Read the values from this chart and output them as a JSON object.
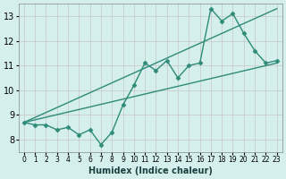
{
  "x": [
    0,
    1,
    2,
    3,
    4,
    5,
    6,
    7,
    8,
    9,
    10,
    11,
    12,
    13,
    14,
    15,
    16,
    17,
    18,
    19,
    20,
    21,
    22,
    23
  ],
  "y_main": [
    8.7,
    8.6,
    8.6,
    8.4,
    8.5,
    8.2,
    8.4,
    7.8,
    8.3,
    9.4,
    10.2,
    11.1,
    10.8,
    11.2,
    10.5,
    11.0,
    11.1,
    13.3,
    12.8,
    13.1,
    12.3,
    11.6,
    11.1,
    11.2
  ],
  "trend1_x": [
    0,
    23
  ],
  "trend1_y": [
    8.7,
    13.3
  ],
  "trend2_x": [
    0,
    23
  ],
  "trend2_y": [
    8.7,
    11.1
  ],
  "line_color": "#2e8b78",
  "bg_color": "#d4efec",
  "grid_color": "#c8c8c8",
  "xlabel": "Humidex (Indice chaleur)",
  "xlim": [
    -0.5,
    23.5
  ],
  "ylim": [
    7.5,
    13.5
  ],
  "yticks": [
    8,
    9,
    10,
    11,
    12,
    13
  ],
  "xticks": [
    0,
    1,
    2,
    3,
    4,
    5,
    6,
    7,
    8,
    9,
    10,
    11,
    12,
    13,
    14,
    15,
    16,
    17,
    18,
    19,
    20,
    21,
    22,
    23
  ],
  "marker": "D",
  "markersize": 2.5,
  "linewidth": 1.0
}
